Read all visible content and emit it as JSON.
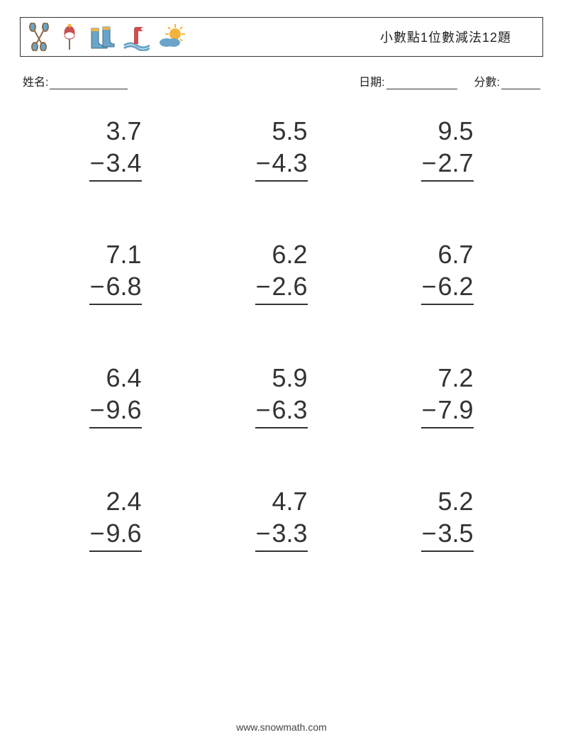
{
  "header": {
    "title": "小數點1位數減法12題",
    "icons": [
      "paddles",
      "float",
      "boots",
      "periscope",
      "sun-cloud"
    ]
  },
  "fields": {
    "name_label": "姓名:",
    "date_label": "日期:",
    "score_label": "分數:",
    "name_blank_width": 110,
    "date_blank_width": 100,
    "score_blank_width": 55
  },
  "style": {
    "text_color": "#333333",
    "border_color": "#333333",
    "background": "#ffffff",
    "problem_font_size": 36,
    "field_font_size": 16,
    "title_font_size": 18,
    "underline_color": "#333333",
    "icon_palette": {
      "blue": "#6aa4c8",
      "red": "#c94f4f",
      "yellow": "#f2b33d",
      "orange": "#e08b3e",
      "brown": "#8a6a4a"
    }
  },
  "grid": {
    "cols": 3,
    "rows": 4
  },
  "problems": [
    {
      "a": "3.7",
      "op": "−",
      "b": "3.4"
    },
    {
      "a": "5.5",
      "op": "−",
      "b": "4.3"
    },
    {
      "a": "9.5",
      "op": "−",
      "b": "2.7"
    },
    {
      "a": "7.1",
      "op": "−",
      "b": "6.8"
    },
    {
      "a": "6.2",
      "op": "−",
      "b": "2.6"
    },
    {
      "a": "6.7",
      "op": "−",
      "b": "6.2"
    },
    {
      "a": "6.4",
      "op": "−",
      "b": "9.6"
    },
    {
      "a": "5.9",
      "op": "−",
      "b": "6.3"
    },
    {
      "a": "7.2",
      "op": "−",
      "b": "7.9"
    },
    {
      "a": "2.4",
      "op": "−",
      "b": "9.6"
    },
    {
      "a": "4.7",
      "op": "−",
      "b": "3.3"
    },
    {
      "a": "5.2",
      "op": "−",
      "b": "3.5"
    }
  ],
  "footer": {
    "url": "www.snowmath.com"
  }
}
